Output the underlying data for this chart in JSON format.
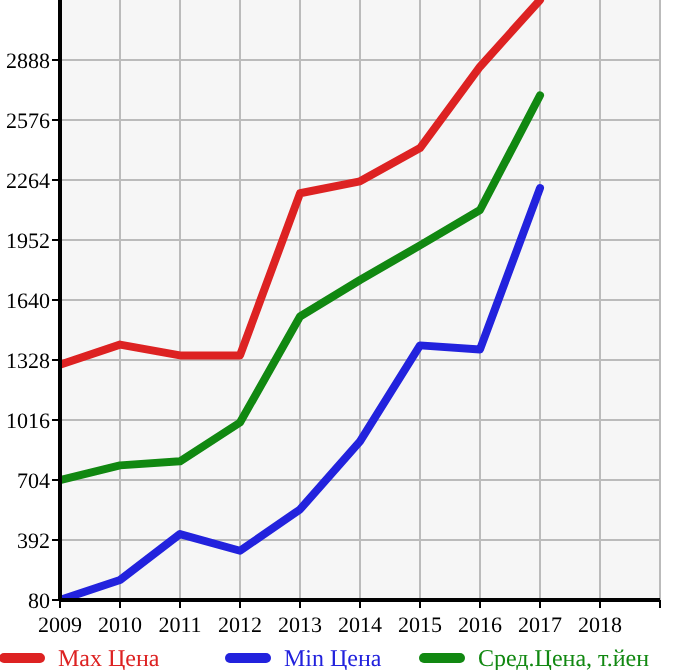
{
  "chart_data": {
    "type": "line",
    "x": [
      2009,
      2010,
      2011,
      2012,
      2013,
      2014,
      2015,
      2016,
      2017
    ],
    "xlim": [
      2009,
      2019
    ],
    "xticks": [
      2009,
      2010,
      2011,
      2012,
      2013,
      2014,
      2015,
      2016,
      2017,
      2018
    ],
    "ylim": [
      80,
      3200
    ],
    "yticks": [
      80,
      392,
      704,
      1016,
      1328,
      1640,
      1952,
      2264,
      2576,
      2888
    ],
    "grid": true,
    "legend": "bottom",
    "marker": "none",
    "line_style": "solid",
    "series": [
      {
        "name": "Max Цена",
        "color": "#dd2222",
        "values": [
          1304,
          1408,
          1352,
          1352,
          2195,
          2257,
          2430,
          2853,
          3200
        ]
      },
      {
        "name": "Min Цена",
        "color": "#2222dd",
        "values": [
          80,
          184,
          423,
          336,
          551,
          905,
          1404,
          1383,
          2222
        ]
      },
      {
        "name": "Сред.Цена, т.йен",
        "color": "#118811",
        "values": [
          704,
          780,
          801,
          1003,
          1554,
          1744,
          1924,
          2108,
          2704
        ]
      }
    ]
  }
}
